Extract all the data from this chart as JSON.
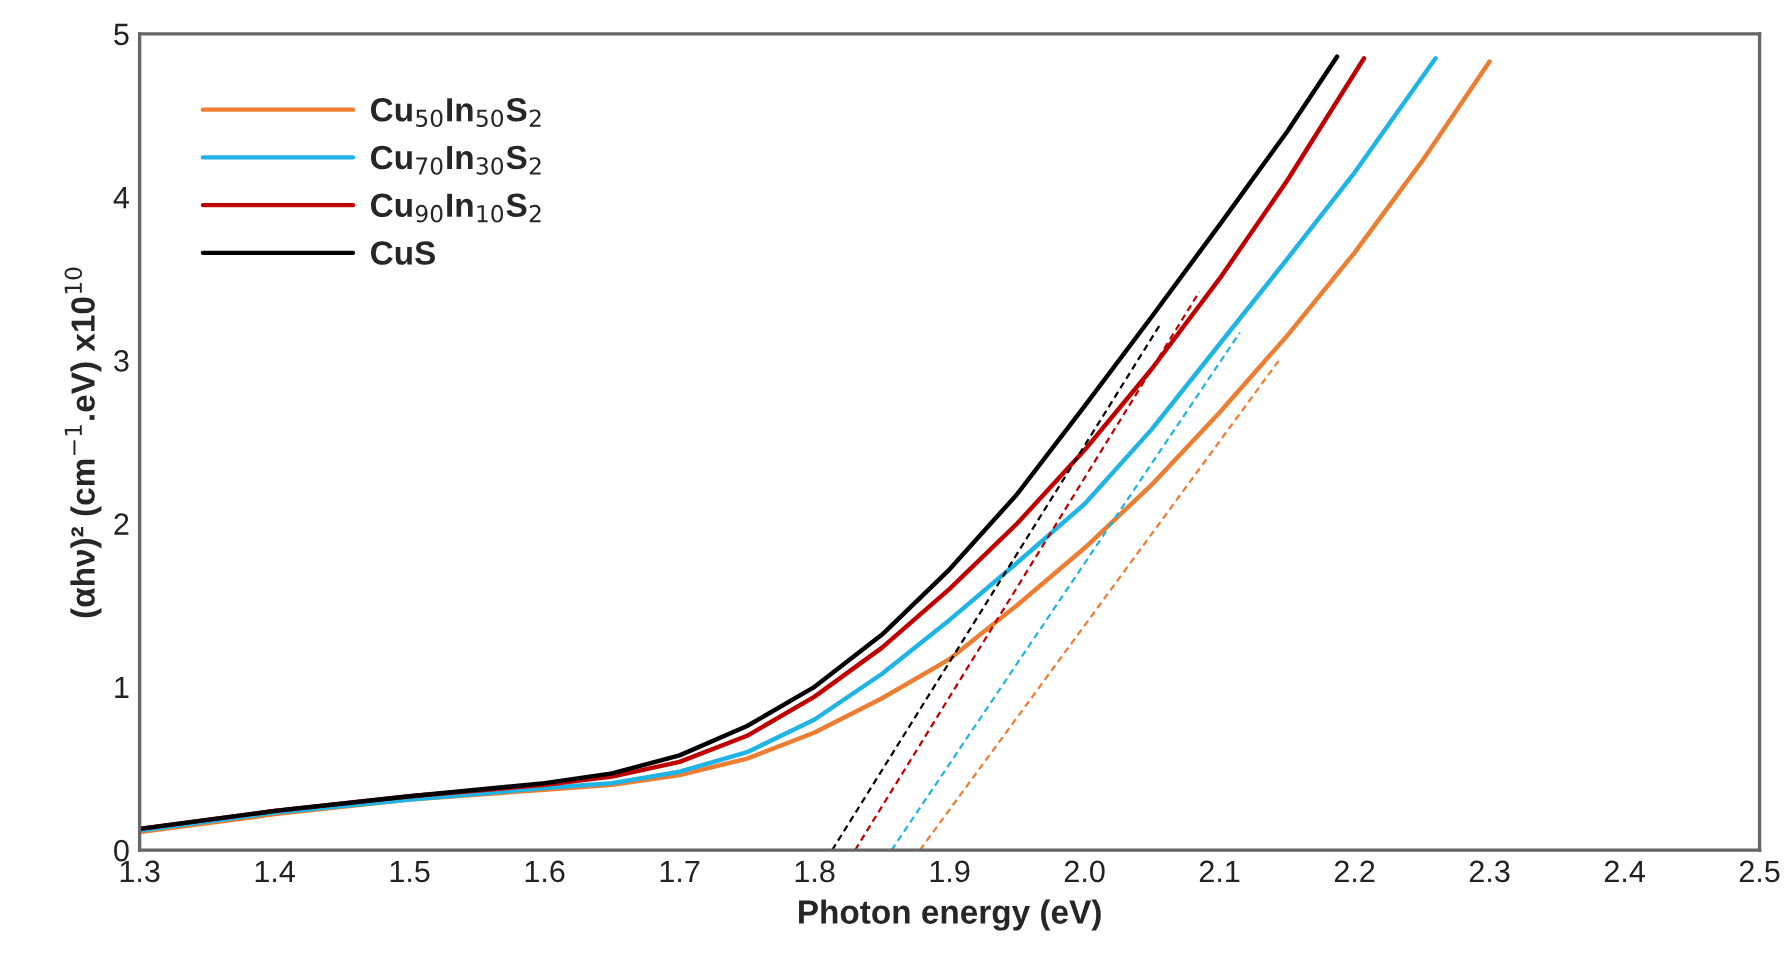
{
  "chart_data": {
    "type": "line",
    "xlabel": "Photon energy (eV)",
    "ylabel": "(αhν)² (cm$^{−1}$.eV) x10$^{10}$",
    "xlim": [
      1.3,
      2.5
    ],
    "xticks": [
      {
        "value": 1.3,
        "label": "1.3"
      },
      {
        "value": 1.4,
        "label": "1.4"
      },
      {
        "value": 1.5,
        "label": "1.5"
      },
      {
        "value": 1.6,
        "label": "1.6"
      },
      {
        "value": 1.7,
        "label": "1.7"
      },
      {
        "value": 1.8,
        "label": "1.8"
      },
      {
        "value": 1.9,
        "label": "1.9"
      },
      {
        "value": 2.0,
        "label": "2.0"
      },
      {
        "value": 2.1,
        "label": "2.1"
      },
      {
        "value": 2.2,
        "label": "2.2"
      },
      {
        "value": 2.3,
        "label": "2.3"
      },
      {
        "value": 2.4,
        "label": "2.4"
      },
      {
        "value": 2.5,
        "label": "2.5"
      }
    ],
    "ylim": [
      0,
      5
    ],
    "yticks": [
      0,
      1,
      2,
      3,
      4,
      5
    ],
    "grid": false,
    "legend": "top left",
    "series": [
      {
        "name": "Cu$_{50}$In$_{50}$S$_{2}$",
        "color": "#ed7d31",
        "x": [
          1.3,
          1.4,
          1.5,
          1.6,
          1.65,
          1.7,
          1.75,
          1.8,
          1.85,
          1.9,
          1.95,
          2.0,
          2.05,
          2.1,
          2.15,
          2.2,
          2.25,
          2.3
        ],
        "values": [
          0.11,
          0.22,
          0.31,
          0.37,
          0.4,
          0.46,
          0.56,
          0.72,
          0.93,
          1.17,
          1.5,
          1.85,
          2.24,
          2.68,
          3.15,
          3.66,
          4.22,
          4.83
        ]
      },
      {
        "name": "Cu$_{70}$In$_{30}$S$_{2}$",
        "color": "#1fb4e6",
        "x": [
          1.3,
          1.4,
          1.5,
          1.6,
          1.65,
          1.7,
          1.75,
          1.8,
          1.85,
          1.9,
          1.95,
          2.0,
          2.05,
          2.1,
          2.15,
          2.2,
          2.26
        ],
        "values": [
          0.12,
          0.23,
          0.31,
          0.38,
          0.41,
          0.48,
          0.6,
          0.8,
          1.08,
          1.41,
          1.76,
          2.12,
          2.58,
          3.1,
          3.62,
          4.15,
          4.85
        ]
      },
      {
        "name": "Cu$_{90}$In$_{10}$S$_{2}$",
        "color": "#c00000",
        "x": [
          1.3,
          1.4,
          1.5,
          1.6,
          1.65,
          1.7,
          1.75,
          1.8,
          1.85,
          1.9,
          1.95,
          2.0,
          2.05,
          2.1,
          2.15,
          2.207
        ],
        "values": [
          0.13,
          0.24,
          0.33,
          0.4,
          0.45,
          0.54,
          0.7,
          0.94,
          1.24,
          1.6,
          2.0,
          2.45,
          2.95,
          3.5,
          4.1,
          4.85
        ]
      },
      {
        "name": "CuS",
        "color": "#000000",
        "x": [
          1.3,
          1.4,
          1.5,
          1.6,
          1.65,
          1.7,
          1.75,
          1.8,
          1.85,
          1.9,
          1.95,
          2.0,
          2.05,
          2.1,
          2.15,
          2.187
        ],
        "values": [
          0.13,
          0.24,
          0.33,
          0.41,
          0.47,
          0.58,
          0.76,
          1.0,
          1.32,
          1.72,
          2.18,
          2.72,
          3.27,
          3.83,
          4.4,
          4.86
        ]
      },
      {
        "color": "#ed7d31",
        "line_style": "dashed",
        "x": [
          1.878,
          2.144
        ],
        "values": [
          0,
          3.0
        ]
      },
      {
        "color": "#1fb4e6",
        "line_style": "dashed",
        "x": [
          1.857,
          2.115
        ],
        "values": [
          0,
          3.17
        ]
      },
      {
        "color": "#c00000",
        "line_style": "dashed",
        "x": [
          1.83,
          2.085
        ],
        "values": [
          0,
          3.42
        ]
      },
      {
        "color": "#000000",
        "line_style": "dashed",
        "x": [
          1.813,
          2.056
        ],
        "values": [
          0,
          3.22
        ]
      }
    ]
  }
}
